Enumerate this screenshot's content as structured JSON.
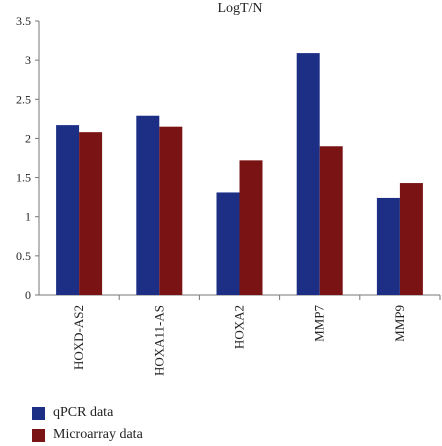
{
  "chart_data": {
    "type": "bar",
    "title": "LogT/N",
    "categories": [
      "HOXD-AS2",
      "HOXA11-AS",
      "HOXA2",
      "MMP7",
      "MMP9"
    ],
    "series": [
      {
        "name": "qPCR data",
        "color": "#1c2f85",
        "values": [
          2.17,
          2.29,
          1.31,
          3.09,
          1.24
        ]
      },
      {
        "name": "Microarray data",
        "color": "#7a1414",
        "values": [
          2.08,
          2.15,
          1.72,
          1.9,
          1.43
        ]
      }
    ],
    "ylim": [
      0,
      3.5
    ],
    "yticks": [
      "0",
      "0.5",
      "1",
      "1.5",
      "2",
      "2.5",
      "3",
      "3.5"
    ],
    "grid": false,
    "legend_position": "bottom-left"
  }
}
